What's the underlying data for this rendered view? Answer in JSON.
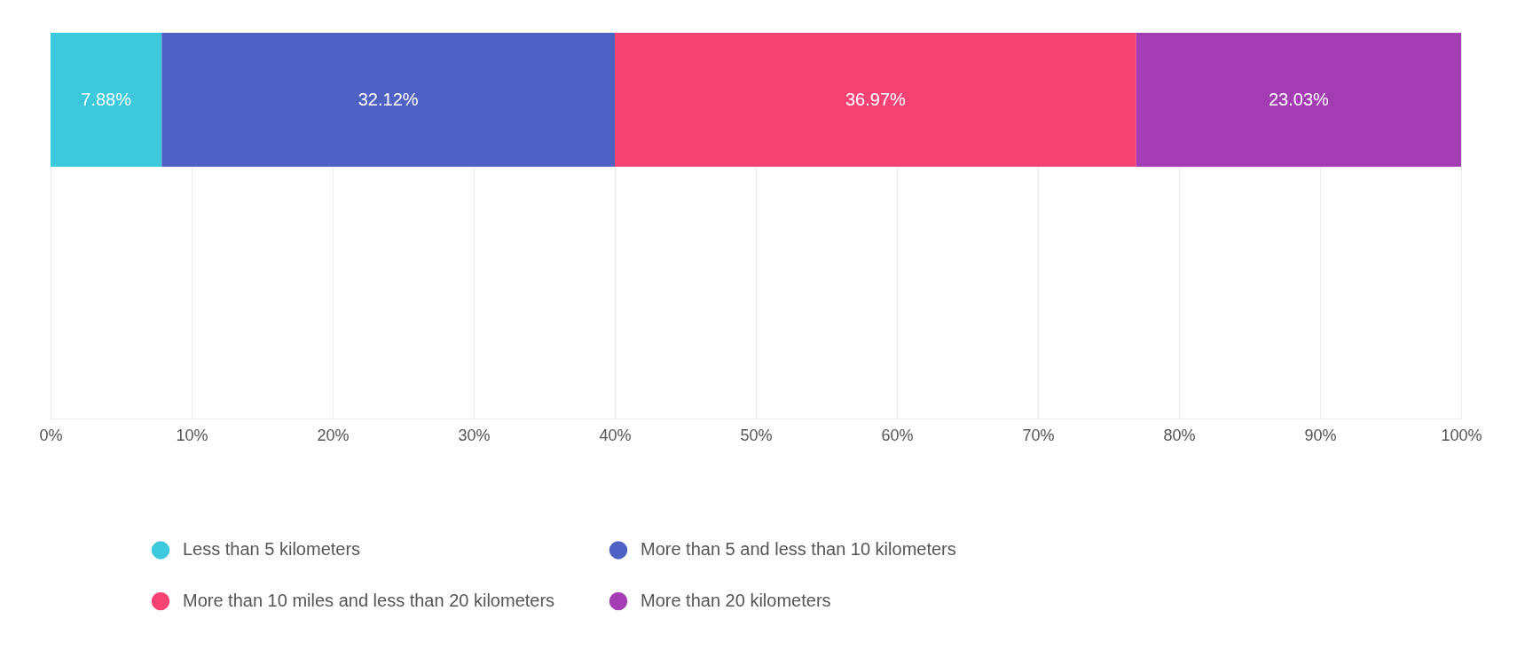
{
  "chart_data": {
    "type": "bar",
    "orientation": "horizontal",
    "stacked": true,
    "categories": [
      null
    ],
    "series": [
      {
        "name": "Less than 5 kilometers",
        "color": "#3ec8dc",
        "values": [
          7.88
        ],
        "value_labels": [
          "7.88%"
        ]
      },
      {
        "name": "More than 5 and less than 10 kilometers",
        "color": "#4f62c4",
        "values": [
          32.12
        ],
        "value_labels": [
          "32.12%"
        ]
      },
      {
        "name": "More than 10 miles and less than 20 kilometers",
        "color": "#f64374",
        "values": [
          36.97
        ],
        "value_labels": [
          "36.97%"
        ]
      },
      {
        "name": "More than 20 kilometers",
        "color": "#a43cb4",
        "values": [
          23.03
        ],
        "value_labels": [
          "23.03%"
        ]
      }
    ],
    "xlim": [
      0,
      100
    ],
    "xticks": [
      {
        "value": 0,
        "label": "0%"
      },
      {
        "value": 10,
        "label": "10%"
      },
      {
        "value": 20,
        "label": "20%"
      },
      {
        "value": 30,
        "label": "30%"
      },
      {
        "value": 40,
        "label": "40%"
      },
      {
        "value": 50,
        "label": "50%"
      },
      {
        "value": 60,
        "label": "60%"
      },
      {
        "value": 70,
        "label": "70%"
      },
      {
        "value": 80,
        "label": "80%"
      },
      {
        "value": 90,
        "label": "90%"
      },
      {
        "value": 100,
        "label": "100%"
      }
    ],
    "grid": "x",
    "legend": "bottom"
  }
}
